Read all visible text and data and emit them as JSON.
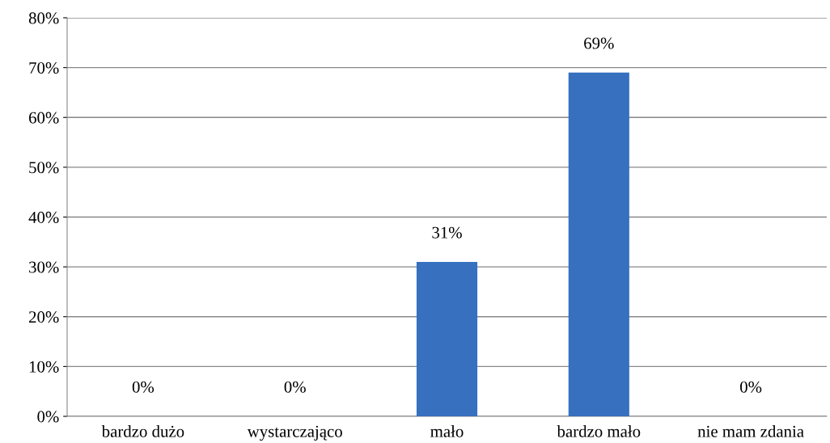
{
  "chart_data": {
    "type": "bar",
    "categories": [
      "bardzo dużo",
      "wystarczająco",
      "mało",
      "bardzo mało",
      "nie mam zdania"
    ],
    "values": [
      0,
      0,
      31,
      69,
      0
    ],
    "value_labels": [
      "0%",
      "0%",
      "31%",
      "69%",
      "0%"
    ],
    "color": "#3670bf",
    "ylim": [
      0,
      80
    ],
    "yticks": [
      {
        "value": 0,
        "label": "0%"
      },
      {
        "value": 10,
        "label": "10%"
      },
      {
        "value": 20,
        "label": "20%"
      },
      {
        "value": 30,
        "label": "30%"
      },
      {
        "value": 40,
        "label": "40%"
      },
      {
        "value": 50,
        "label": "50%"
      },
      {
        "value": 60,
        "label": "60%"
      },
      {
        "value": 70,
        "label": "70%"
      },
      {
        "value": 80,
        "label": "80%"
      }
    ],
    "grid": "y"
  }
}
